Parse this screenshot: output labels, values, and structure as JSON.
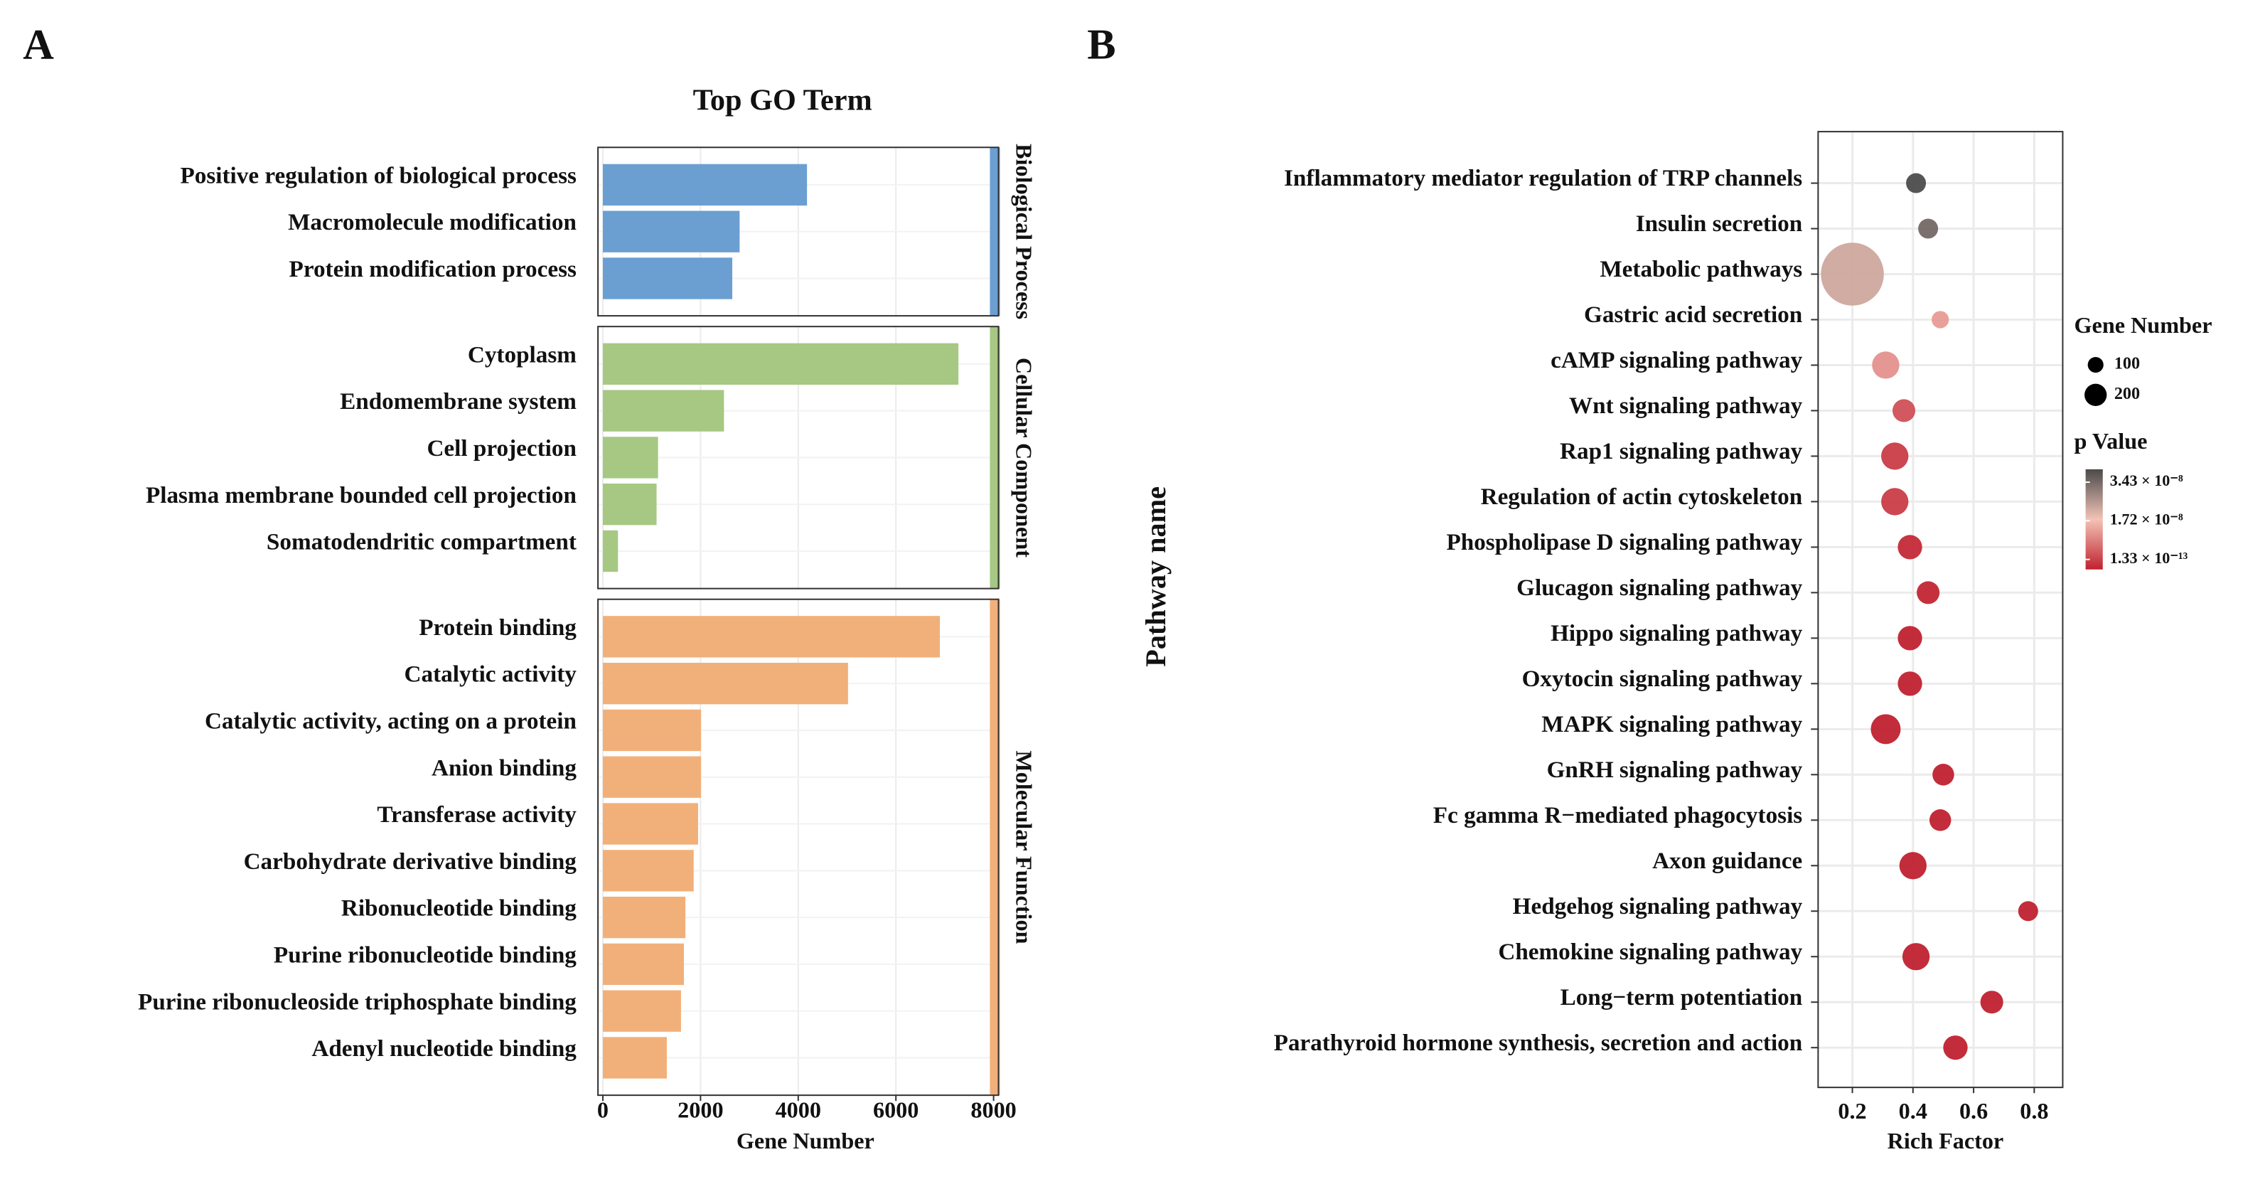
{
  "chart_data": [
    {
      "type": "faceted-bar",
      "panel_label": "A",
      "title": "Top GO Term",
      "x_label": "Gene Number",
      "xlim": [
        -100,
        8100
      ],
      "xticks": [
        0,
        2000,
        4000,
        6000,
        8000
      ],
      "grid": true,
      "facets": [
        {
          "name": "Biological Process",
          "color": "#6b9fd1",
          "categories": [
            "Positive regulation of biological process",
            "Macromolecule modification",
            "Protein modification process"
          ],
          "values": [
            4180,
            2800,
            2650
          ]
        },
        {
          "name": "Cellular Component",
          "color": "#a6c883",
          "categories": [
            "Cytoplasm",
            "Endomembrane system",
            "Cell projection",
            "Plasma membrane bounded cell projection",
            "Somatodendritic compartment"
          ],
          "values": [
            7280,
            2480,
            1130,
            1100,
            310
          ]
        },
        {
          "name": "Molecular Function",
          "color": "#f1b07a",
          "categories": [
            "Protein binding",
            "Catalytic activity",
            "Catalytic activity, acting on a protein",
            "Anion binding",
            "Transferase activity",
            "Carbohydrate derivative binding",
            "Ribonucleotide binding",
            "Purine ribonucleotide binding",
            "Purine ribonucleoside triphosphate binding",
            "Adenyl nucleotide binding"
          ],
          "values": [
            6900,
            5020,
            2010,
            2010,
            1950,
            1860,
            1690,
            1660,
            1600,
            1310
          ]
        }
      ]
    },
    {
      "type": "dot",
      "panel_label": "B",
      "x_label": "Rich Factor",
      "y_label": "Pathway  name",
      "xlim": [
        0.087,
        0.894
      ],
      "xticks": [
        0.2,
        0.4,
        0.6,
        0.8
      ],
      "grid": true,
      "categories": [
        "Inflammatory mediator regulation of TRP channels",
        "Insulin secretion",
        "Metabolic pathways",
        "Gastric acid secretion",
        "cAMP signaling pathway",
        "Wnt signaling pathway",
        "Rap1 signaling pathway",
        "Regulation of actin cytoskeleton",
        "Phospholipase D signaling pathway",
        "Glucagon signaling pathway",
        "Hippo signaling pathway",
        "Oxytocin signaling pathway",
        "MAPK signaling pathway",
        "GnRH signaling pathway",
        "Fc gamma R−mediated phagocytosis",
        "Axon guidance",
        "Hedgehog signaling pathway",
        "Chemokine signaling pathway",
        "Long−term potentiation",
        "Parathyroid hormone synthesis, secretion and action"
      ],
      "x": [
        0.41,
        0.45,
        0.2,
        0.49,
        0.31,
        0.37,
        0.34,
        0.34,
        0.39,
        0.45,
        0.39,
        0.39,
        0.31,
        0.5,
        0.49,
        0.4,
        0.78,
        0.41,
        0.66,
        0.54
      ],
      "sizes": [
        160,
        160,
        1600,
        120,
        300,
        210,
        300,
        300,
        240,
        210,
        240,
        240,
        360,
        190,
        190,
        300,
        160,
        300,
        210,
        240
      ],
      "p_values": [
        3.4e-08,
        3e-08,
        2.1e-08,
        1.3e-08,
        1.2e-08,
        5e-09,
        3e-09,
        3e-09,
        1e-09,
        5e-10,
        1e-10,
        1e-10,
        1.33e-13,
        1e-11,
        1e-11,
        1e-11,
        1e-11,
        1e-11,
        1e-11,
        1e-11
      ],
      "size_legend": {
        "title": "Gene Number",
        "values": [
          100,
          200
        ]
      },
      "color_legend": {
        "title": "p Value",
        "colors": [
          "#c0212f",
          "#f3c3b6",
          "#4a4a4a"
        ],
        "lim": [
          1.33e-13,
          3.43e-08
        ],
        "ticks": [
          {
            "value": 3.43e-08,
            "label": "3.43 × 10⁻⁸"
          },
          {
            "value": 1.72e-08,
            "label": "1.72 × 10⁻⁸"
          },
          {
            "value": 1.33e-13,
            "label": "1.33 × 10⁻¹³"
          }
        ]
      }
    }
  ]
}
